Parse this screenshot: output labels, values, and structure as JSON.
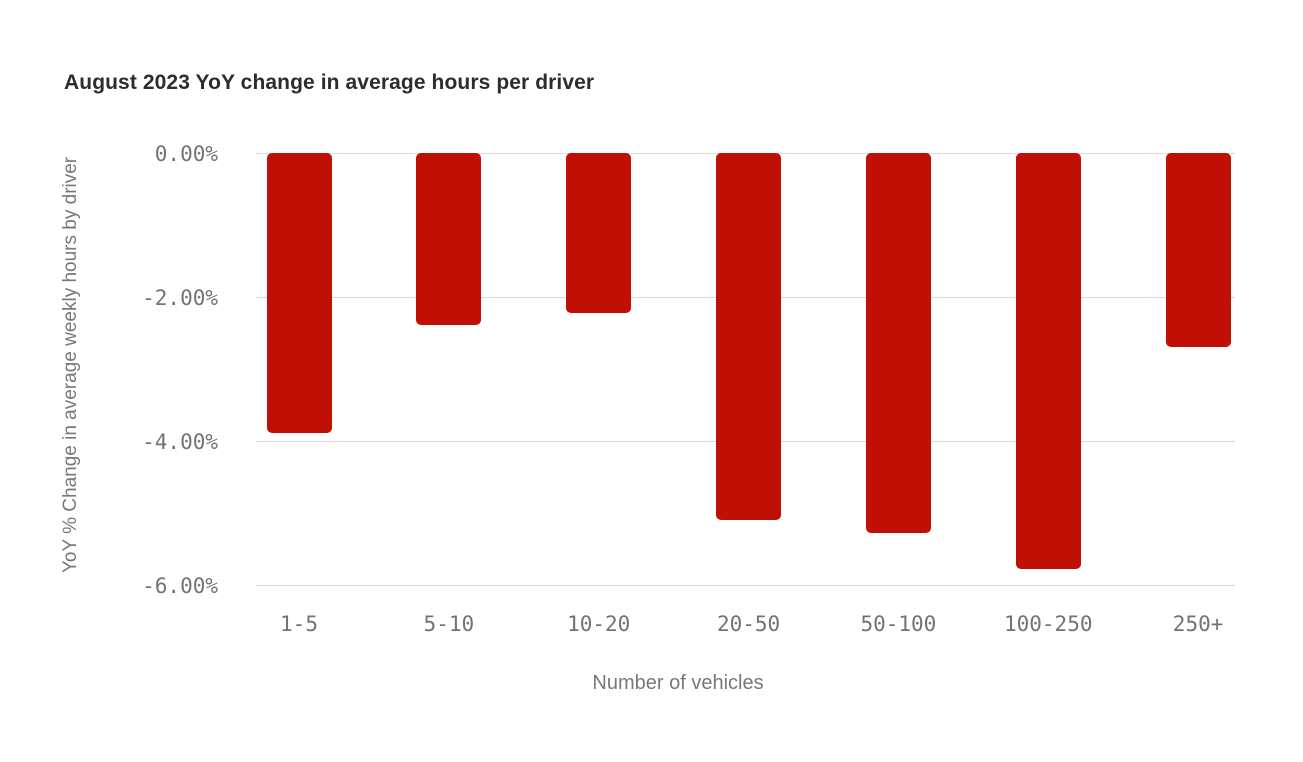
{
  "chart_data": {
    "type": "bar",
    "title": "August 2023 YoY change in average hours per driver",
    "xlabel": "Number of vehicles",
    "ylabel": "YoY % Change in average weekly hours by driver",
    "categories": [
      "1-5",
      "5-10",
      "10-20",
      "20-50",
      "50-100",
      "100-250",
      "250+"
    ],
    "values": [
      -3.9,
      -2.4,
      -2.23,
      -5.1,
      -5.28,
      -5.79,
      -2.7
    ],
    "unit": "%",
    "ylim": [
      -6,
      0
    ],
    "y_ticks": [
      {
        "value": 0,
        "label": "0.00%"
      },
      {
        "value": -2,
        "label": "-2.00%"
      },
      {
        "value": -4,
        "label": "-4.00%"
      },
      {
        "value": -6,
        "label": "-6.00%"
      }
    ],
    "grid": true,
    "legend": "none",
    "bar_color": "#c00f04"
  },
  "colors": {
    "background": "#ffffff",
    "bar": "#c00f04",
    "title_text": "#2b2d2e",
    "tick_text": "#727376",
    "axis_title_text": "#77787a",
    "gridline": "#d9d9d9"
  }
}
